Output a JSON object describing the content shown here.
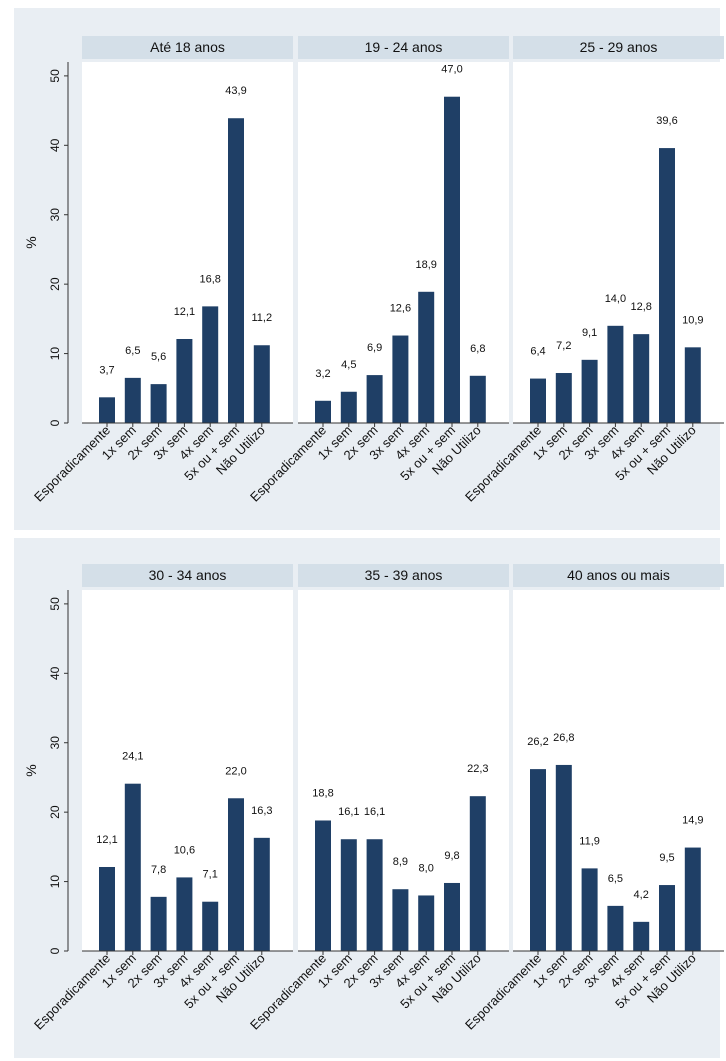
{
  "colors": {
    "bar": "#1f3f66",
    "strip": "#d4dfe8",
    "plot_bg": "#ffffff",
    "outer_bg": "#e9eef3",
    "axis": "#333333"
  },
  "chart_data": {
    "type": "bar",
    "ylabel": "%",
    "ylim": [
      0,
      52
    ],
    "yticks": [
      0,
      10,
      20,
      30,
      40,
      50
    ],
    "grid": false,
    "categories": [
      "Esporadicamente",
      "1x sem",
      "2x sem",
      "3x sem",
      "4x sem",
      "5x ou + sem",
      "Não Utilizo"
    ],
    "panels": [
      {
        "title": "Até 18 anos",
        "values": [
          3.7,
          6.5,
          5.6,
          12.1,
          16.8,
          43.9,
          11.2
        ],
        "labels": [
          "3,7",
          "6,5",
          "5,6",
          "12,1",
          "16,8",
          "43,9",
          "11,2"
        ]
      },
      {
        "title": "19 - 24 anos",
        "values": [
          3.2,
          4.5,
          6.9,
          12.6,
          18.9,
          47.0,
          6.8
        ],
        "labels": [
          "3,2",
          "4,5",
          "6,9",
          "12,6",
          "18,9",
          "47,0",
          "6,8"
        ]
      },
      {
        "title": "25 - 29 anos",
        "values": [
          6.4,
          7.2,
          9.1,
          14.0,
          12.8,
          39.6,
          10.9
        ],
        "labels": [
          "6,4",
          "7,2",
          "9,1",
          "14,0",
          "12,8",
          "39,6",
          "10,9"
        ]
      },
      {
        "title": "30 - 34 anos",
        "values": [
          12.1,
          24.1,
          7.8,
          10.6,
          7.1,
          22.0,
          16.3
        ],
        "labels": [
          "12,1",
          "24,1",
          "7,8",
          "10,6",
          "7,1",
          "22,0",
          "16,3"
        ]
      },
      {
        "title": "35 - 39 anos",
        "values": [
          18.8,
          16.1,
          16.1,
          8.9,
          8.0,
          9.8,
          22.3
        ],
        "labels": [
          "18,8",
          "16,1",
          "16,1",
          "8,9",
          "8,0",
          "9,8",
          "22,3"
        ]
      },
      {
        "title": "40 anos ou mais",
        "values": [
          26.2,
          26.8,
          11.9,
          6.5,
          4.2,
          9.5,
          14.9
        ],
        "labels": [
          "26,2",
          "26,8",
          "11,9",
          "6,5",
          "4,2",
          "9,5",
          "14,9"
        ]
      }
    ]
  }
}
